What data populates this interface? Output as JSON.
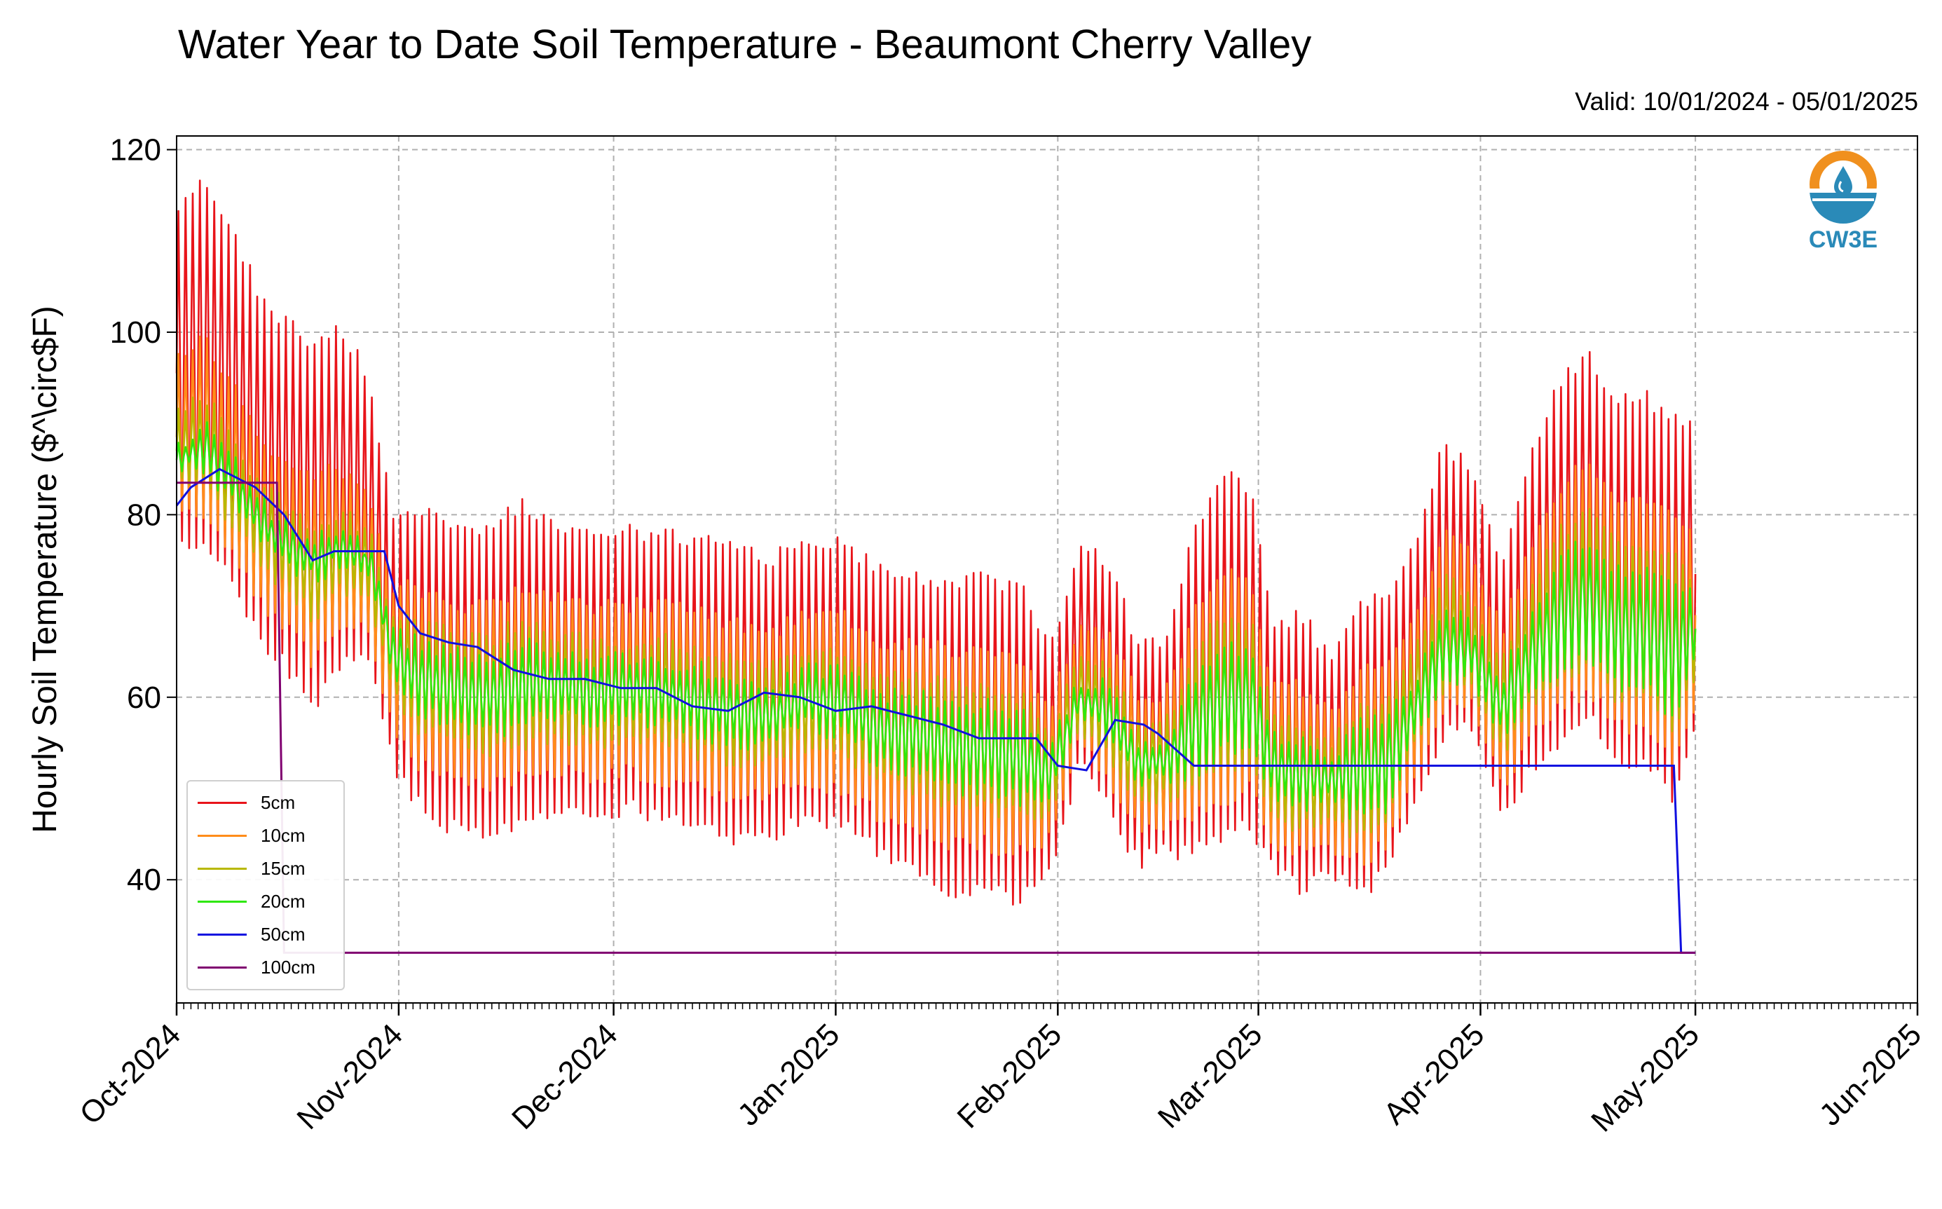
{
  "chart_data": {
    "type": "line",
    "title": "Water Year to Date Soil Temperature - Beaumont Cherry Valley",
    "subtitle": "Valid: 10/01/2024 - 05/01/2025",
    "ylabel": "Hourly Soil Temperature ($^\\circ$F)",
    "xlabel": "",
    "ylim": [
      26.5,
      121.5
    ],
    "xlim": [
      "2024-10-01",
      "2025-06-01"
    ],
    "yticks": [
      "40",
      "60",
      "80",
      "100",
      "120"
    ],
    "xticks": [
      {
        "date": "2024-10-01",
        "label": "Oct-2024"
      },
      {
        "date": "2024-11-01",
        "label": "Nov-2024"
      },
      {
        "date": "2024-12-01",
        "label": "Dec-2024"
      },
      {
        "date": "2025-01-01",
        "label": "Jan-2025"
      },
      {
        "date": "2025-02-01",
        "label": "Feb-2025"
      },
      {
        "date": "2025-03-01",
        "label": "Mar-2025"
      },
      {
        "date": "2025-04-01",
        "label": "Apr-2025"
      },
      {
        "date": "2025-05-01",
        "label": "May-2025"
      },
      {
        "date": "2025-06-01",
        "label": "Jun-2025"
      }
    ],
    "grid": true,
    "legend_position": "lower-left",
    "daily_cycle_amplitude_note_colors": {
      "5cm": "#e8141a",
      "10cm": "#ff8c1a",
      "15cm": "#b8b800",
      "20cm": "#2ee80c",
      "50cm": "#1010e0",
      "100cm": "#800070"
    },
    "series": [
      {
        "name": "5cm",
        "color": "#e8141a",
        "dates": [
          "2024-10-01",
          "2024-10-05",
          "2024-10-09",
          "2024-10-13",
          "2024-10-16",
          "2024-10-20",
          "2024-10-24",
          "2024-10-28",
          "2024-10-31",
          "2024-11-03",
          "2024-11-08",
          "2024-11-13",
          "2024-11-18",
          "2024-11-23",
          "2024-11-28",
          "2024-12-03",
          "2024-12-08",
          "2024-12-13",
          "2024-12-18",
          "2024-12-23",
          "2024-12-28",
          "2025-01-02",
          "2025-01-07",
          "2025-01-12",
          "2025-01-17",
          "2025-01-22",
          "2025-01-27",
          "2025-01-31",
          "2025-02-04",
          "2025-02-08",
          "2025-02-12",
          "2025-02-16",
          "2025-02-20",
          "2025-02-24",
          "2025-02-28",
          "2025-03-03",
          "2025-03-07",
          "2025-03-11",
          "2025-03-15",
          "2025-03-19",
          "2025-03-23",
          "2025-03-27",
          "2025-03-31",
          "2025-04-04",
          "2025-04-08",
          "2025-04-12",
          "2025-04-16",
          "2025-04-20",
          "2025-04-24",
          "2025-04-28",
          "2025-05-01"
        ],
        "max": [
          115,
          117,
          112,
          104,
          102,
          100,
          101,
          96,
          81,
          82,
          80,
          79,
          82,
          80,
          79,
          79,
          79,
          78,
          77,
          76,
          78,
          78,
          75,
          74,
          73,
          74,
          73,
          66,
          77,
          76,
          67,
          67,
          79,
          85,
          84,
          69,
          70,
          65,
          71,
          72,
          78,
          89,
          85,
          75,
          88,
          95,
          99,
          93,
          94,
          91,
          92
        ],
        "min": [
          76,
          76,
          71,
          65,
          63,
          58,
          63,
          63,
          52,
          48,
          45,
          44,
          45,
          47,
          46,
          47,
          46,
          45,
          43,
          44,
          46,
          45,
          42,
          40,
          38,
          38,
          37,
          40,
          52,
          47,
          41,
          42,
          42,
          44,
          45,
          40,
          38,
          40,
          37,
          40,
          48,
          55,
          56,
          45,
          51,
          54,
          57,
          52,
          52,
          48,
          55
        ]
      },
      {
        "name": "10cm",
        "color": "#ff8c1a",
        "dates": [
          "2024-10-01",
          "2024-10-05",
          "2024-10-09",
          "2024-10-13",
          "2024-10-16",
          "2024-10-20",
          "2024-10-24",
          "2024-10-28",
          "2024-10-31",
          "2024-11-03",
          "2024-11-08",
          "2024-11-13",
          "2024-11-18",
          "2024-11-23",
          "2024-11-28",
          "2024-12-03",
          "2024-12-08",
          "2024-12-13",
          "2024-12-18",
          "2024-12-23",
          "2024-12-28",
          "2025-01-02",
          "2025-01-07",
          "2025-01-12",
          "2025-01-17",
          "2025-01-22",
          "2025-01-27",
          "2025-01-31",
          "2025-02-04",
          "2025-02-08",
          "2025-02-12",
          "2025-02-16",
          "2025-02-20",
          "2025-02-24",
          "2025-02-28",
          "2025-03-03",
          "2025-03-07",
          "2025-03-11",
          "2025-03-15",
          "2025-03-19",
          "2025-03-23",
          "2025-03-27",
          "2025-03-31",
          "2025-04-04",
          "2025-04-08",
          "2025-04-12",
          "2025-04-16",
          "2025-04-20",
          "2025-04-24",
          "2025-04-28",
          "2025-05-01"
        ],
        "max": [
          98,
          100,
          95,
          89,
          87,
          85,
          86,
          83,
          73,
          73,
          71,
          71,
          73,
          72,
          71,
          71,
          71,
          70,
          69,
          68,
          70,
          70,
          67,
          67,
          66,
          66,
          65,
          60,
          69,
          68,
          61,
          61,
          70,
          75,
          74,
          62,
          62,
          59,
          64,
          65,
          70,
          79,
          76,
          68,
          78,
          84,
          87,
          83,
          83,
          81,
          80
        ],
        "min": [
          79,
          79,
          74,
          69,
          67,
          63,
          67,
          66,
          56,
          52,
          50,
          49,
          50,
          51,
          50,
          51,
          50,
          49,
          48,
          48,
          50,
          49,
          46,
          45,
          43,
          43,
          42,
          44,
          54,
          50,
          45,
          45,
          46,
          48,
          49,
          43,
          42,
          43,
          41,
          43,
          51,
          58,
          58,
          49,
          55,
          58,
          60,
          56,
          56,
          52,
          58
        ]
      },
      {
        "name": "15cm",
        "color": "#b8b800",
        "dates": [
          "2024-10-01",
          "2024-10-05",
          "2024-10-09",
          "2024-10-13",
          "2024-10-16",
          "2024-10-20",
          "2024-10-24",
          "2024-10-28",
          "2024-10-31",
          "2024-11-03",
          "2024-11-08",
          "2024-11-13",
          "2024-11-18",
          "2024-11-23",
          "2024-11-28",
          "2024-12-03",
          "2024-12-08",
          "2024-12-13",
          "2024-12-18",
          "2024-12-23",
          "2024-12-28",
          "2025-01-02",
          "2025-01-07",
          "2025-01-12",
          "2025-01-17",
          "2025-01-22",
          "2025-01-27",
          "2025-01-31",
          "2025-02-04",
          "2025-02-08",
          "2025-02-12",
          "2025-02-16",
          "2025-02-20",
          "2025-02-24",
          "2025-02-28",
          "2025-03-03",
          "2025-03-07",
          "2025-03-11",
          "2025-03-15",
          "2025-03-19",
          "2025-03-23",
          "2025-03-27",
          "2025-03-31",
          "2025-04-04",
          "2025-04-08",
          "2025-04-12",
          "2025-04-16",
          "2025-04-20",
          "2025-04-24",
          "2025-04-28",
          "2025-05-01"
        ],
        "max": [
          92,
          94,
          89,
          84,
          82,
          80,
          81,
          79,
          70,
          69,
          68,
          67,
          69,
          68,
          67,
          67,
          67,
          66,
          65,
          64,
          66,
          66,
          63,
          63,
          62,
          62,
          61,
          57,
          65,
          64,
          58,
          58,
          66,
          70,
          69,
          59,
          58,
          56,
          60,
          61,
          66,
          74,
          72,
          65,
          73,
          79,
          81,
          78,
          78,
          76,
          74
        ],
        "min": [
          82,
          82,
          78,
          73,
          71,
          68,
          71,
          70,
          60,
          56,
          54,
          53,
          54,
          55,
          54,
          55,
          54,
          53,
          52,
          52,
          54,
          53,
          50,
          49,
          47,
          47,
          46,
          47,
          56,
          53,
          48,
          48,
          49,
          51,
          52,
          46,
          45,
          46,
          44,
          46,
          54,
          60,
          60,
          53,
          58,
          61,
          63,
          59,
          59,
          56,
          61
        ]
      },
      {
        "name": "20cm",
        "color": "#2ee80c",
        "dates": [
          "2024-10-01",
          "2024-10-05",
          "2024-10-09",
          "2024-10-13",
          "2024-10-16",
          "2024-10-20",
          "2024-10-24",
          "2024-10-28",
          "2024-10-31",
          "2024-11-03",
          "2024-11-08",
          "2024-11-13",
          "2024-11-18",
          "2024-11-23",
          "2024-11-28",
          "2024-12-03",
          "2024-12-08",
          "2024-12-13",
          "2024-12-18",
          "2024-12-23",
          "2024-12-28",
          "2025-01-02",
          "2025-01-07",
          "2025-01-12",
          "2025-01-17",
          "2025-01-22",
          "2025-01-27",
          "2025-01-31",
          "2025-02-04",
          "2025-02-08",
          "2025-02-12",
          "2025-02-16",
          "2025-02-20",
          "2025-02-24",
          "2025-02-28",
          "2025-03-03",
          "2025-03-07",
          "2025-03-11",
          "2025-03-15",
          "2025-03-19",
          "2025-03-23",
          "2025-03-27",
          "2025-03-31",
          "2025-04-04",
          "2025-04-08",
          "2025-04-12",
          "2025-04-16",
          "2025-04-20",
          "2025-04-24",
          "2025-04-28",
          "2025-05-01"
        ],
        "max": [
          88,
          91,
          87,
          82,
          80,
          78,
          79,
          77,
          68,
          67,
          66,
          65,
          67,
          66,
          65,
          65,
          65,
          64,
          63,
          62,
          64,
          64,
          61,
          61,
          60,
          60,
          59,
          55,
          63,
          62,
          56,
          56,
          63,
          67,
          66,
          57,
          56,
          54,
          58,
          59,
          63,
          71,
          69,
          63,
          70,
          76,
          78,
          75,
          75,
          73,
          72
        ],
        "min": [
          84,
          84,
          80,
          76,
          74,
          72,
          74,
          73,
          62,
          58,
          56,
          55,
          56,
          57,
          56,
          57,
          56,
          55,
          54,
          54,
          56,
          55,
          52,
          51,
          49,
          49,
          48,
          48,
          57,
          55,
          50,
          50,
          51,
          53,
          54,
          48,
          47,
          48,
          46,
          47,
          55,
          61,
          61,
          55,
          59,
          62,
          64,
          60,
          60,
          57,
          63
        ]
      },
      {
        "name": "50cm",
        "color": "#1010e0",
        "dates": [
          "2024-10-01",
          "2024-10-03",
          "2024-10-07",
          "2024-10-12",
          "2024-10-16",
          "2024-10-20",
          "2024-10-23",
          "2024-10-27",
          "2024-10-30",
          "2024-11-01",
          "2024-11-04",
          "2024-11-08",
          "2024-11-12",
          "2024-11-17",
          "2024-11-22",
          "2024-11-27",
          "2024-12-02",
          "2024-12-07",
          "2024-12-12",
          "2024-12-17",
          "2024-12-22",
          "2024-12-27",
          "2025-01-01",
          "2025-01-06",
          "2025-01-11",
          "2025-01-16",
          "2025-01-21",
          "2025-01-26",
          "2025-01-29",
          "2025-02-01",
          "2025-02-05",
          "2025-02-09",
          "2025-02-13",
          "2025-02-15",
          "2025-02-20",
          "2025-03-01",
          "2025-03-15",
          "2025-04-01",
          "2025-04-15",
          "2025-04-28",
          "2025-04-29",
          "2025-05-01"
        ],
        "values": [
          81,
          83,
          85,
          83,
          80,
          75,
          76,
          76,
          76,
          70,
          67,
          66,
          65.5,
          63,
          62,
          62,
          61,
          61,
          59,
          58.5,
          60.5,
          60,
          58.5,
          59,
          58,
          57,
          55.5,
          55.5,
          55.5,
          52.5,
          52,
          57.5,
          57,
          56,
          52.5,
          52.5,
          52.5,
          52.5,
          52.5,
          52.5,
          32,
          32
        ]
      },
      {
        "name": "100cm",
        "color": "#800070",
        "dates": [
          "2024-10-01",
          "2024-10-15",
          "2024-10-16",
          "2025-05-01"
        ],
        "values": [
          83.5,
          83.5,
          32,
          32
        ]
      }
    ]
  },
  "legend": {
    "items": [
      {
        "label": "5cm",
        "color": "#e8141a"
      },
      {
        "label": "10cm",
        "color": "#ff8c1a"
      },
      {
        "label": "15cm",
        "color": "#b8b800"
      },
      {
        "label": "20cm",
        "color": "#2ee80c"
      },
      {
        "label": "50cm",
        "color": "#1010e0"
      },
      {
        "label": "100cm",
        "color": "#800070"
      }
    ]
  },
  "logo": {
    "text": "CW3E",
    "icon": "water-drop-sun-logo-icon",
    "colors": {
      "sun": "#f0901e",
      "water": "#2a8ab8"
    }
  }
}
